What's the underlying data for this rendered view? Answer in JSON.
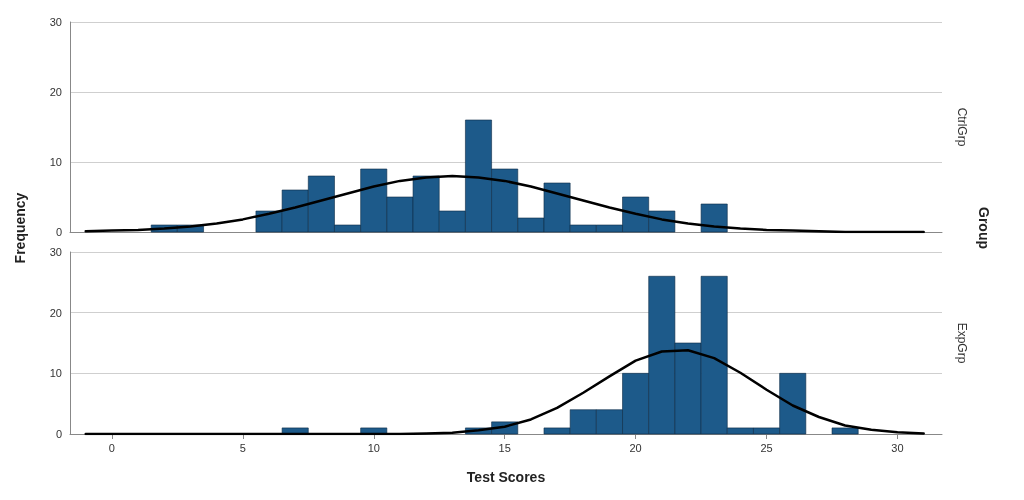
{
  "chart_data": [
    {
      "type": "histogram",
      "ylabel": "Frequency",
      "y2label": "CtrlGrp",
      "annotations": [
        "Group"
      ],
      "xlim": [
        -1.6,
        31.7
      ],
      "xticks": [
        0,
        5,
        10,
        15,
        20,
        25,
        30
      ],
      "ylim": [
        0,
        30
      ],
      "yticks": [
        0,
        10,
        20,
        30
      ],
      "grid": "y",
      "tick_labels": "y",
      "series": [
        {
          "color": "#1d5a8a",
          "bins": [
            1.5,
            2.5,
            3.5,
            4.5,
            5.5,
            6.5,
            7.5,
            8.5,
            9.5,
            10.5,
            11.5,
            12.5,
            13.5,
            14.5,
            15.5,
            16.5,
            17.5,
            18.5,
            19.5,
            20.5,
            21.5,
            22.5,
            23.5
          ],
          "values": [
            1,
            1,
            0,
            0,
            3,
            6,
            8,
            1,
            9,
            5,
            8,
            3,
            16,
            9,
            2,
            7,
            1,
            1,
            5,
            3,
            0,
            4
          ]
        },
        {
          "type": "line",
          "color": "#000000",
          "x": [
            -1,
            0,
            1,
            2,
            3,
            4,
            5,
            6,
            7,
            8,
            9,
            10,
            11,
            12,
            13,
            14,
            15,
            16,
            17,
            18,
            19,
            20,
            21,
            22,
            23,
            24,
            25,
            26,
            27,
            28,
            29,
            30,
            31
          ],
          "values": [
            0.1,
            0.2,
            0.3,
            0.5,
            0.8,
            1.2,
            1.8,
            2.6,
            3.5,
            4.5,
            5.5,
            6.5,
            7.3,
            7.8,
            8,
            7.8,
            7.3,
            6.5,
            5.5,
            4.5,
            3.5,
            2.6,
            1.8,
            1.2,
            0.8,
            0.5,
            0.3,
            0.2,
            0.1,
            0,
            0,
            0,
            0
          ]
        }
      ]
    },
    {
      "type": "histogram",
      "xlabel": "Test Scores",
      "y2label": "ExpGrp",
      "xlim": [
        -1.6,
        31.7
      ],
      "xticks": [
        0,
        5,
        10,
        15,
        20,
        25,
        30
      ],
      "ylim": [
        0,
        30
      ],
      "yticks": [
        0,
        10,
        20,
        30
      ],
      "grid": "y",
      "series": [
        {
          "color": "#1d5a8a",
          "bins": [
            6.5,
            7.5,
            8.5,
            9.5,
            10.5,
            11.5,
            12.5,
            13.5,
            14.5,
            15.5,
            16.5,
            17.5,
            18.5,
            19.5,
            20.5,
            21.5,
            22.5,
            23.5,
            24.5,
            25.5,
            26.5,
            27.5,
            28.5
          ],
          "values": [
            1,
            0,
            0,
            1,
            0,
            0,
            0,
            1,
            2,
            0,
            1,
            4,
            4,
            10,
            26,
            15,
            26,
            1,
            1,
            10,
            0,
            1
          ]
        },
        {
          "type": "line",
          "color": "#000000",
          "x": [
            -1,
            0,
            1,
            2,
            3,
            4,
            5,
            6,
            7,
            8,
            9,
            10,
            11,
            12,
            13,
            14,
            15,
            16,
            17,
            18,
            19,
            20,
            21,
            22,
            23,
            24,
            25,
            26,
            27,
            28,
            29,
            30,
            31
          ],
          "values": [
            0,
            0,
            0,
            0,
            0,
            0,
            0,
            0,
            0,
            0,
            0,
            0,
            0,
            0.1,
            0.2,
            0.6,
            1.2,
            2.4,
            4.3,
            6.8,
            9.5,
            12.1,
            13.6,
            13.8,
            12.5,
            10.1,
            7.3,
            4.7,
            2.8,
            1.4,
            0.7,
            0.3,
            0.1
          ]
        }
      ]
    }
  ]
}
